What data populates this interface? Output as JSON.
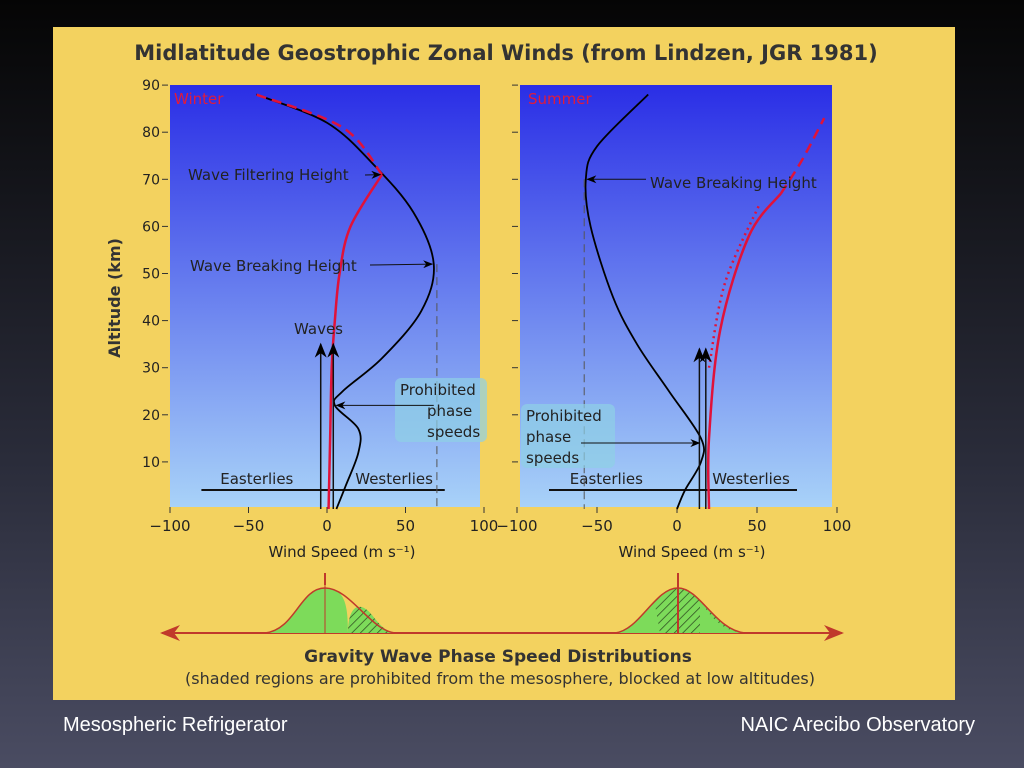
{
  "slide": {
    "footer_left": "Mesospheric Refrigerator",
    "footer_right": "NAIC Arecibo Observatory"
  },
  "figure": {
    "title": "Midlatitude Geostrophic Zonal Winds (from Lindzen, JGR 1981)",
    "y_axis_label": "Altitude (km)",
    "y_ticks": [
      "90",
      "80",
      "70",
      "60",
      "50",
      "40",
      "30",
      "20",
      "10"
    ],
    "panels": [
      {
        "season": "Winter",
        "x_ticks": [
          "−100",
          "−50",
          "0",
          "50",
          "100"
        ],
        "x_axis_label": "Wind Speed (m s⁻¹)",
        "filtering": "Wave Filtering Height",
        "breaking": "Wave Breaking Height",
        "waves": "Waves",
        "prohibited": [
          "Prohibited",
          "phase",
          "speeds"
        ],
        "easterlies": "Easterlies",
        "westerlies": "Westerlies"
      },
      {
        "season": "Summer",
        "x_ticks": [
          "−100",
          "−50",
          "0",
          "50",
          "100"
        ],
        "x_axis_label": "Wind Speed (m s⁻¹)",
        "breaking": "Wave Breaking Height",
        "prohibited": [
          "Prohibited",
          "phase",
          "speeds"
        ],
        "easterlies": "Easterlies",
        "westerlies": "Westerlies"
      }
    ],
    "distribution_title": "Gravity Wave Phase Speed Distributions",
    "distribution_subtitle": "(shaded regions are prohibited from the mesosphere, blocked at low altitudes)"
  }
}
